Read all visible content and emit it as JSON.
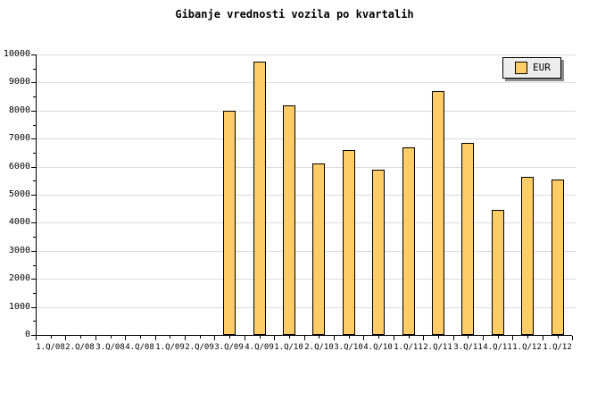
{
  "title": "Gibanje vrednosti vozila po kvartalih",
  "chart_data": {
    "type": "bar",
    "title": "Gibanje vrednosti vozila po kvartalih",
    "categories": [
      "1.Q/08",
      "2.Q/08",
      "3.Q/08",
      "4.Q/08",
      "1.Q/09",
      "2.Q/09",
      "3.Q/09",
      "4.Q/09",
      "1.Q/10",
      "2.Q/10",
      "3.Q/10",
      "4.Q/10",
      "1.Q/11",
      "2.Q/11",
      "3.Q/11",
      "4.Q/11",
      "1.Q/12",
      "1.Q/12"
    ],
    "series": [
      {
        "name": "EUR",
        "color": "#FFCC66",
        "values": [
          null,
          null,
          null,
          null,
          null,
          null,
          8000,
          9750,
          8200,
          6100,
          6600,
          5900,
          6700,
          8700,
          6850,
          4450,
          5650,
          5550
        ]
      }
    ],
    "xlabel": "",
    "ylabel": "",
    "ylim": [
      0,
      10000
    ],
    "y_tick_interval": 1000,
    "y_minor_tick_interval": 500,
    "y_tick_labels": [
      "0",
      "1000",
      "2000",
      "3000",
      "4000",
      "5000",
      "6000",
      "7000",
      "8000",
      "9000",
      "10000"
    ],
    "grid": "horizontal",
    "grid_color": "#DCDCDC",
    "axis_color": "#000000",
    "bar_border_color": "#000000",
    "legend": {
      "position": "top-right",
      "label": "EUR",
      "swatch_color": "#FFCC66",
      "box_color": "#EDEDED",
      "shadow_color": "#8C8C8C"
    }
  }
}
